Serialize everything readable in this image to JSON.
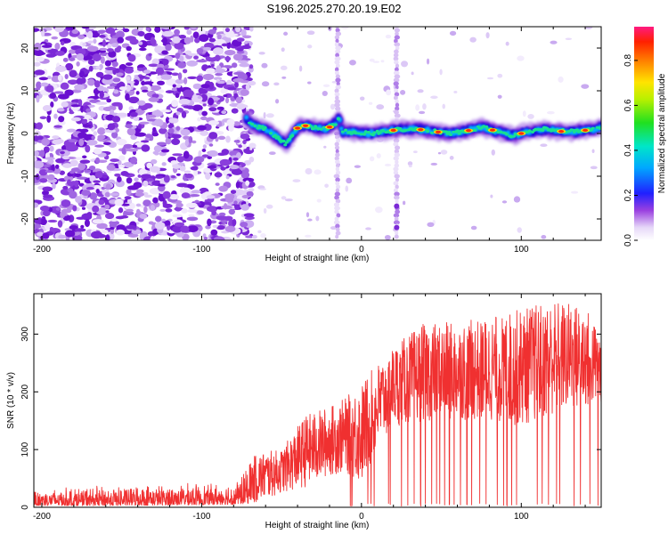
{
  "title": "S196.2025.270.20.19.E02",
  "colors": {
    "signal": "#f03030",
    "axis": "#000000"
  },
  "chart_data": [
    {
      "type": "heatmap",
      "name": "spectrogram",
      "xlabel": "Height of straight line (km)",
      "ylabel": "Frequency (Hz)",
      "xlim": [
        -205,
        150
      ],
      "ylim": [
        -25,
        25
      ],
      "xticks": [
        -200,
        -100,
        0,
        100
      ],
      "yticks": [
        -20,
        -10,
        0,
        10,
        20
      ],
      "noise_region_km": [
        -205,
        -72
      ],
      "sparse_region_km": [
        -72,
        150
      ],
      "vertical_streaks_km": [
        -15,
        22
      ],
      "signal_band": [
        {
          "x": -72,
          "f": 3.5
        },
        {
          "x": -68,
          "f": 2
        },
        {
          "x": -60,
          "f": 1
        },
        {
          "x": -52,
          "f": -1
        },
        {
          "x": -47,
          "f": -2.5
        },
        {
          "x": -42,
          "f": 0.5
        },
        {
          "x": -38,
          "f": 2
        },
        {
          "x": -30,
          "f": 1.5
        },
        {
          "x": -22,
          "f": 1
        },
        {
          "x": -16,
          "f": 2.5
        },
        {
          "x": -14,
          "f": 4
        },
        {
          "x": -12,
          "f": 0.5
        },
        {
          "x": -5,
          "f": 0.3
        },
        {
          "x": 5,
          "f": 0
        },
        {
          "x": 15,
          "f": 0.5
        },
        {
          "x": 25,
          "f": 1
        },
        {
          "x": 35,
          "f": 1
        },
        {
          "x": 45,
          "f": 0.5
        },
        {
          "x": 55,
          "f": 0
        },
        {
          "x": 65,
          "f": 0.5
        },
        {
          "x": 75,
          "f": 1.5
        },
        {
          "x": 85,
          "f": 0.5
        },
        {
          "x": 95,
          "f": -0.5
        },
        {
          "x": 105,
          "f": 0.5
        },
        {
          "x": 115,
          "f": 1
        },
        {
          "x": 125,
          "f": 0.5
        },
        {
          "x": 135,
          "f": 0.5
        },
        {
          "x": 145,
          "f": 1
        },
        {
          "x": 150,
          "f": 1.5
        }
      ],
      "hot_spots_km": [
        -40,
        -35,
        -20,
        20,
        37,
        48,
        67,
        82,
        100,
        125,
        140
      ],
      "colorbar": {
        "label": "Normalized spectral amplitude",
        "range": [
          0,
          0.95
        ],
        "ticks": [
          "0.0",
          "0.2",
          "0.4",
          "0.6",
          "0.8"
        ]
      }
    },
    {
      "type": "line",
      "name": "snr",
      "xlabel": "Height of straight line (km)",
      "ylabel": "SNR (10 * v/v)",
      "xlim": [
        -205,
        150
      ],
      "ylim": [
        0,
        370
      ],
      "xticks": [
        -200,
        -100,
        0,
        100
      ],
      "yticks": [
        0,
        100,
        200,
        300
      ],
      "envelope": [
        {
          "x": -205,
          "lo": 3,
          "hi": 35
        },
        {
          "x": -150,
          "lo": 3,
          "hi": 40
        },
        {
          "x": -80,
          "lo": 5,
          "hi": 45
        },
        {
          "x": -65,
          "lo": 8,
          "hi": 95
        },
        {
          "x": -50,
          "lo": 25,
          "hi": 100
        },
        {
          "x": -35,
          "lo": 35,
          "hi": 160
        },
        {
          "x": -20,
          "lo": 55,
          "hi": 175
        },
        {
          "x": -10,
          "lo": 60,
          "hi": 190
        },
        {
          "x": 0,
          "lo": 40,
          "hi": 215
        },
        {
          "x": 10,
          "lo": 100,
          "hi": 250
        },
        {
          "x": 20,
          "lo": 140,
          "hi": 280
        },
        {
          "x": 40,
          "lo": 150,
          "hi": 320
        },
        {
          "x": 60,
          "lo": 150,
          "hi": 320
        },
        {
          "x": 80,
          "lo": 150,
          "hi": 330
        },
        {
          "x": 100,
          "lo": 140,
          "hi": 345
        },
        {
          "x": 120,
          "lo": 160,
          "hi": 360
        },
        {
          "x": 140,
          "lo": 170,
          "hi": 350
        },
        {
          "x": 150,
          "lo": 180,
          "hi": 300
        }
      ],
      "dropouts_km": [
        -7,
        -6,
        4,
        6,
        8,
        17,
        18,
        25,
        29,
        33,
        37,
        40,
        44,
        47,
        49,
        52,
        55,
        58,
        62,
        66,
        69,
        74,
        78,
        85,
        89,
        91,
        94,
        97,
        110,
        113,
        117,
        122,
        124,
        133,
        137,
        143,
        148
      ]
    }
  ]
}
